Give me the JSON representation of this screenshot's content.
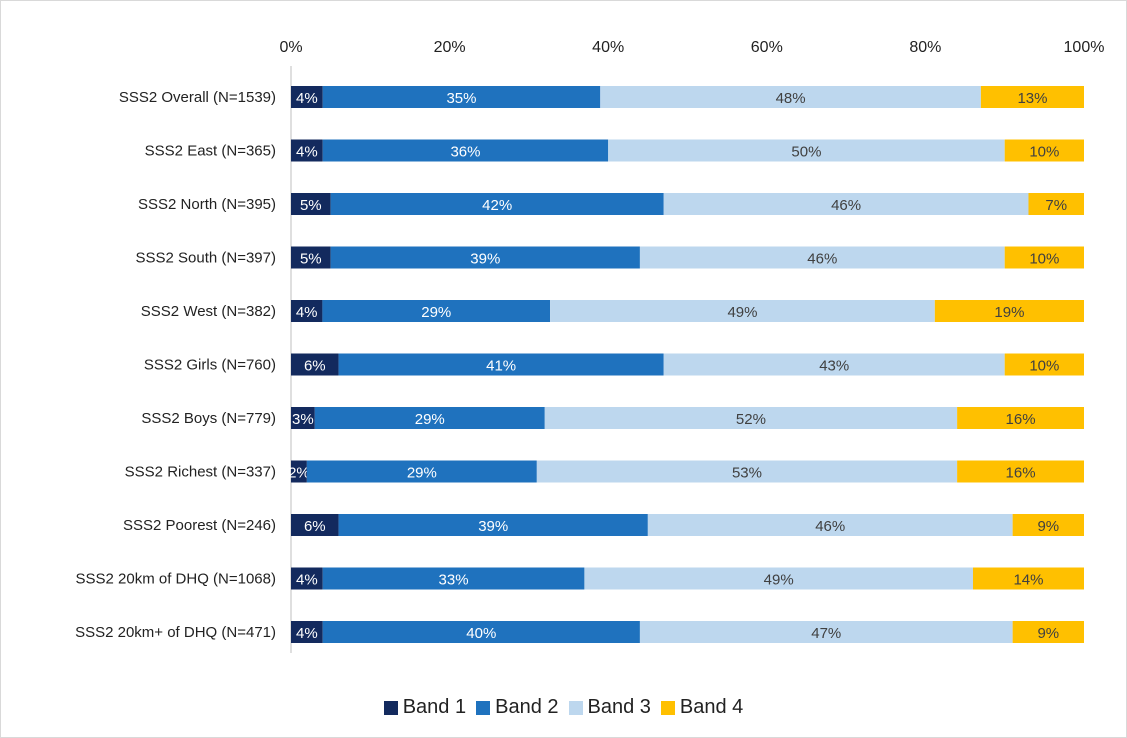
{
  "chart_data": {
    "type": "bar",
    "orientation": "horizontal",
    "stacked": true,
    "percent_stacked": true,
    "categories": [
      "SSS2 Overall (N=1539)",
      "SSS2 East (N=365)",
      "SSS2 North (N=395)",
      "SSS2 South (N=397)",
      "SSS2 West (N=382)",
      "SSS2 Girls (N=760)",
      "SSS2 Boys (N=779)",
      "SSS2 Richest (N=337)",
      "SSS2 Poorest (N=246)",
      "SSS2 20km of DHQ (N=1068)",
      "SSS2 20km+ of DHQ (N=471)"
    ],
    "series": [
      {
        "name": "Band 1",
        "color": "#132a5e",
        "label_color": "#ffffff",
        "values": [
          4,
          4,
          5,
          5,
          4,
          6,
          3,
          2,
          6,
          4,
          4
        ]
      },
      {
        "name": "Band 2",
        "color": "#1f72be",
        "label_color": "#ffffff",
        "values": [
          35,
          36,
          42,
          39,
          29,
          41,
          29,
          29,
          39,
          33,
          40
        ]
      },
      {
        "name": "Band 3",
        "color": "#bdd7ee",
        "label_color": "#404040",
        "values": [
          48,
          50,
          46,
          46,
          49,
          43,
          52,
          53,
          46,
          49,
          47
        ]
      },
      {
        "name": "Band 4",
        "color": "#ffc000",
        "label_color": "#404040",
        "values": [
          13,
          10,
          7,
          10,
          19,
          10,
          16,
          16,
          9,
          14,
          9
        ]
      }
    ],
    "xlim": [
      0,
      100
    ],
    "x_ticks": [
      "0%",
      "20%",
      "40%",
      "60%",
      "80%",
      "100%"
    ],
    "value_suffix": "%",
    "legend_position": "bottom",
    "grid": false
  }
}
